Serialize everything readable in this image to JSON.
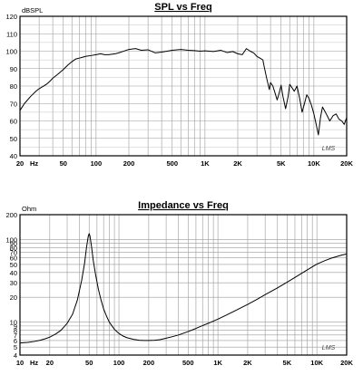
{
  "chart_data": [
    {
      "type": "line",
      "title": "SPL vs Freq",
      "ylabel": "dBSPL",
      "xlabel": "",
      "xscale": "log",
      "xlim": [
        20,
        20000
      ],
      "ylim": [
        40,
        120
      ],
      "grid": true,
      "watermark": "LMS",
      "x_ticks": [
        {
          "value": 20,
          "label": "20"
        },
        {
          "value": 50,
          "label": "50"
        },
        {
          "value": 100,
          "label": "100"
        },
        {
          "value": 200,
          "label": "200"
        },
        {
          "value": 500,
          "label": "500"
        },
        {
          "value": 1000,
          "label": "1K"
        },
        {
          "value": 2000,
          "label": "2K"
        },
        {
          "value": 5000,
          "label": "5K"
        },
        {
          "value": 10000,
          "label": "10K"
        },
        {
          "value": 20000,
          "label": "20K"
        }
      ],
      "x_unit_label": "Hz",
      "y_ticks": [
        120,
        110,
        100,
        90,
        80,
        70,
        60,
        50,
        40
      ],
      "series": [
        {
          "x": [
            20,
            22,
            25,
            28,
            30,
            32,
            35,
            38,
            40,
            45,
            50,
            55,
            60,
            65,
            70,
            75,
            80,
            90,
            100,
            110,
            120,
            130,
            150,
            170,
            200,
            230,
            260,
            300,
            350,
            400,
            450,
            500,
            600,
            700,
            800,
            900,
            1000,
            1200,
            1400,
            1600,
            1800,
            2000,
            2200,
            2400,
            2600,
            2800,
            3000,
            3200,
            3400,
            3500,
            3700,
            3900,
            4000,
            4200,
            4400,
            4600,
            4800,
            5000,
            5200,
            5500,
            5800,
            6000,
            6300,
            6600,
            7000,
            7400,
            7800,
            8200,
            8600,
            9000,
            9500,
            10000,
            10500,
            11000,
            11500,
            12000,
            12500,
            13000,
            14000,
            15000,
            16000,
            17000,
            18000,
            19000,
            20000
          ],
          "y": [
            66,
            70,
            74,
            77,
            78.5,
            79.5,
            81,
            83,
            84.5,
            87,
            89.5,
            92,
            94,
            95.5,
            96,
            96.5,
            97,
            97.5,
            98,
            98.5,
            98,
            98,
            98.5,
            99.5,
            101,
            101.5,
            100.5,
            100.8,
            99,
            99.5,
            100,
            100.5,
            101,
            100.5,
            100.3,
            100,
            100.2,
            99.8,
            100.5,
            99.2,
            99.8,
            98.5,
            98,
            101.5,
            100,
            99,
            97,
            96,
            95,
            91,
            84,
            78,
            82,
            80,
            76,
            72,
            76,
            80.5,
            74,
            67,
            74,
            81,
            79,
            77,
            80,
            73,
            65,
            70,
            75,
            73,
            69,
            64,
            58,
            52,
            62,
            68,
            66,
            64,
            60,
            63,
            64,
            61,
            60,
            58,
            62
          ]
        }
      ]
    },
    {
      "type": "line",
      "title": "Impedance vs Freq",
      "ylabel": "Ohm",
      "xlabel": "",
      "xscale": "log",
      "yscale": "log",
      "xlim": [
        10,
        20000
      ],
      "ylim": [
        4,
        200
      ],
      "grid": true,
      "watermark": "LMS",
      "x_ticks": [
        {
          "value": 10,
          "label": "10"
        },
        {
          "value": 20,
          "label": "20"
        },
        {
          "value": 50,
          "label": "50"
        },
        {
          "value": 100,
          "label": "100"
        },
        {
          "value": 200,
          "label": "200"
        },
        {
          "value": 500,
          "label": "500"
        },
        {
          "value": 1000,
          "label": "1K"
        },
        {
          "value": 2000,
          "label": "2K"
        },
        {
          "value": 5000,
          "label": "5K"
        },
        {
          "value": 10000,
          "label": "10K"
        },
        {
          "value": 20000,
          "label": "20K"
        }
      ],
      "x_unit_label": "Hz",
      "y_ticks": [
        {
          "value": 200,
          "label": "200"
        },
        {
          "value": 100,
          "label": "100"
        },
        {
          "value": 90,
          "label": "90"
        },
        {
          "value": 80,
          "label": "80"
        },
        {
          "value": 70,
          "label": "70"
        },
        {
          "value": 60,
          "label": "60"
        },
        {
          "value": 50,
          "label": "50"
        },
        {
          "value": 40,
          "label": "40"
        },
        {
          "value": 30,
          "label": "30"
        },
        {
          "value": 20,
          "label": "20"
        },
        {
          "value": 10,
          "label": "10"
        },
        {
          "value": 9,
          "label": "9"
        },
        {
          "value": 8,
          "label": "8"
        },
        {
          "value": 7,
          "label": "7"
        },
        {
          "value": 6,
          "label": "6"
        },
        {
          "value": 5,
          "label": "5"
        },
        {
          "value": 4,
          "label": "4"
        }
      ],
      "series": [
        {
          "x": [
            10,
            12,
            14,
            16,
            18,
            20,
            23,
            26,
            30,
            34,
            38,
            42,
            45,
            47,
            49,
            50,
            51,
            53,
            55,
            58,
            62,
            66,
            70,
            75,
            80,
            90,
            100,
            110,
            120,
            140,
            160,
            180,
            200,
            230,
            260,
            300,
            350,
            400,
            500,
            600,
            700,
            800,
            1000,
            1200,
            1500,
            2000,
            2500,
            3000,
            4000,
            5000,
            6000,
            7000,
            8000,
            10000,
            12000,
            14000,
            16000,
            18000,
            20000
          ],
          "y": [
            5.6,
            5.7,
            5.85,
            6.05,
            6.3,
            6.6,
            7.2,
            8.0,
            9.7,
            12.5,
            18.5,
            32,
            52,
            80,
            110,
            118,
            110,
            80,
            56,
            38,
            25,
            18.5,
            14.5,
            11.8,
            10,
            8.2,
            7.3,
            6.8,
            6.5,
            6.2,
            6.05,
            6.0,
            6.0,
            6.05,
            6.15,
            6.4,
            6.7,
            7.0,
            7.7,
            8.4,
            9.1,
            9.7,
            10.9,
            12.1,
            13.8,
            16.4,
            19.0,
            21.5,
            26.0,
            30.5,
            34.8,
            39.0,
            43.0,
            50.5,
            55.5,
            59.5,
            62.5,
            65,
            67
          ]
        }
      ]
    }
  ]
}
